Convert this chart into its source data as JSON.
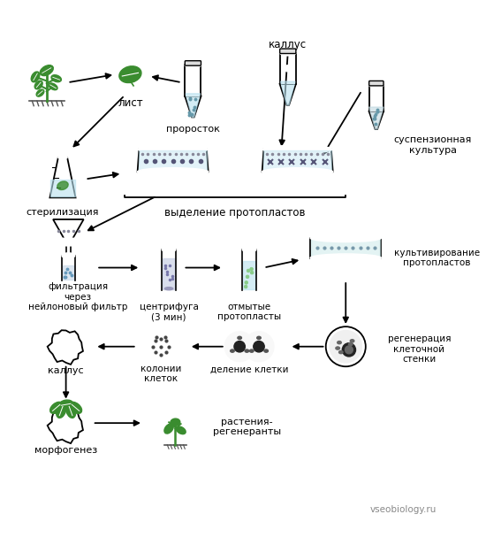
{
  "bg_color": "#ffffff",
  "green_color": "#3a8c2f",
  "light_blue": "#b8e0ee",
  "watermark": "vseobiology.ru",
  "labels": {
    "kallus_top": "каллус",
    "list": "лист",
    "prorostok": "проросток",
    "suspenzionnaya": "суспензионная\nкультура",
    "sterilizaciya": "стерилизация",
    "vydelenie": "выделение протопластов",
    "filtracia": "фильтрация\nчерез\nнейлоновый фильтр",
    "centrifuga": "центрифуга\n(3 мин)",
    "otmytye": "отмытые\nпротопласты",
    "kultivirovanie": "культивирование\nпротопластов",
    "regeneraciya": "регенерация\nклеточной\nстенки",
    "delenie": "деление клетки",
    "kolonii": "колонии\nклеток",
    "kallus_bot": "каллус",
    "morfogenez": "морфогенез",
    "rasteniya": "растения-\nрегенеранты"
  }
}
